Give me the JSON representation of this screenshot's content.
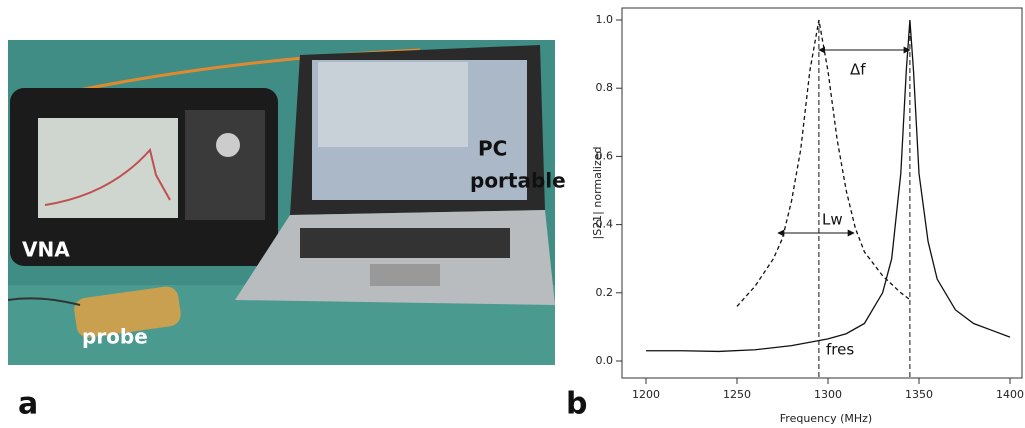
{
  "panel_a": {
    "label": "a",
    "annotations": [
      "VNA",
      "PC",
      "portable",
      "probe"
    ]
  },
  "chart_data": {
    "type": "line",
    "label": "b",
    "xlabel": "Frequency (MHz)",
    "ylabel": "|S21| normalized",
    "xlim": [
      1200,
      1400
    ],
    "xticks": [
      1200,
      1250,
      1300,
      1350,
      1400
    ],
    "ylim": [
      0,
      1
    ],
    "yticks": [
      {
        "value": 0,
        "label": "0.0"
      },
      0.2,
      0.4,
      0.6,
      0.8,
      {
        "value": 1,
        "label": "1.0"
      }
    ],
    "series": [
      {
        "style": "solid",
        "color": "#111111",
        "x": [
          1200,
          1220,
          1240,
          1260,
          1280,
          1300,
          1310,
          1320,
          1330,
          1335,
          1340,
          1343,
          1345,
          1347,
          1350,
          1355,
          1360,
          1370,
          1380,
          1390,
          1400
        ],
        "values": [
          0.03,
          0.03,
          0.028,
          0.033,
          0.045,
          0.065,
          0.08,
          0.11,
          0.2,
          0.3,
          0.55,
          0.85,
          1.0,
          0.85,
          0.55,
          0.35,
          0.24,
          0.15,
          0.11,
          0.09,
          0.07
        ]
      },
      {
        "style": "dashed",
        "color": "#111111",
        "x": [
          1250,
          1260,
          1270,
          1275,
          1280,
          1285,
          1290,
          1295,
          1300,
          1305,
          1310,
          1315,
          1320,
          1330,
          1340,
          1345
        ],
        "values": [
          0.16,
          0.22,
          0.3,
          0.36,
          0.47,
          0.62,
          0.85,
          1.0,
          0.85,
          0.65,
          0.5,
          0.39,
          0.32,
          0.25,
          0.2,
          0.18
        ]
      }
    ],
    "reference_lines": [
      1295,
      1345
    ],
    "annotations": [
      "Δf",
      "Lw",
      "fres"
    ]
  }
}
